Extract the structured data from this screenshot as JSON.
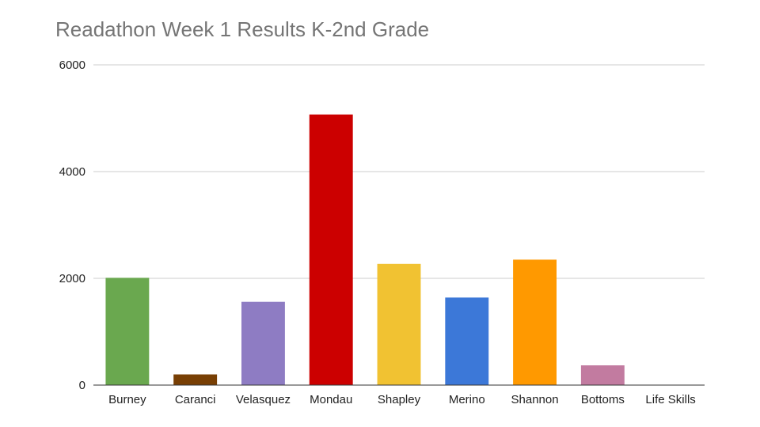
{
  "chart_data": {
    "type": "bar",
    "title": "Readathon Week 1 Results K-2nd Grade",
    "xlabel": "",
    "ylabel": "",
    "ylim": [
      0,
      6000
    ],
    "yticks": [
      "0",
      "2000",
      "4000",
      "6000"
    ],
    "grid": true,
    "categories": [
      "Burney",
      "Caranci",
      "Velasquez",
      "Mondau",
      "Shapley",
      "Merino",
      "Shannon",
      "Bottoms",
      "Life Skills"
    ],
    "values": [
      2010,
      200,
      1560,
      5070,
      2270,
      1640,
      2350,
      370,
      0
    ],
    "colors": [
      "#6aa84f",
      "#783f04",
      "#8e7cc3",
      "#cc0000",
      "#f1c232",
      "#3c78d8",
      "#ff9900",
      "#c27ba0",
      "#cccccc"
    ]
  }
}
